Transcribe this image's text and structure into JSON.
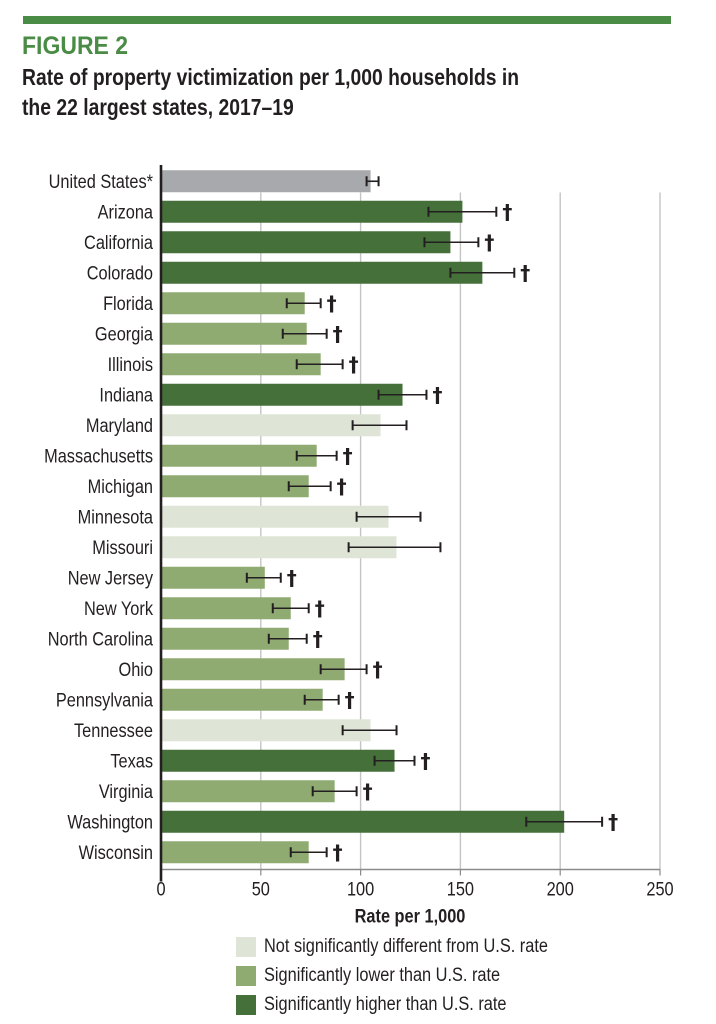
{
  "figure_label": "FIGURE 2",
  "title_line1": "Rate of property victimization per 1,000 households in",
  "title_line2": "the 22 largest states, 2017–19",
  "colors": {
    "header_green": "#4a8c46",
    "us": "#a7a9ac",
    "not_significant": "#dfe5d6",
    "lower": "#8fab72",
    "higher": "#46703a",
    "text": "#231f20"
  },
  "chart_data": {
    "type": "bar",
    "orientation": "horizontal",
    "title": "Rate of property victimization per 1,000 households in the 22 largest states, 2017–19",
    "xlabel": "Rate per 1,000",
    "ylabel": "",
    "xlim": [
      0,
      250
    ],
    "xticks": [
      "0",
      "50",
      "100",
      "150",
      "200",
      "250"
    ],
    "grid": true,
    "legend_position": "bottom",
    "significance_marker": "†",
    "categories": [
      "United States*",
      "Arizona",
      "California",
      "Colorado",
      "Florida",
      "Georgia",
      "Illinois",
      "Indiana",
      "Maryland",
      "Massachusetts",
      "Michigan",
      "Minnesota",
      "Missouri",
      "New Jersey",
      "New York",
      "North Carolina",
      "Ohio",
      "Pennsylvania",
      "Tennessee",
      "Texas",
      "Virginia",
      "Washington",
      "Wisconsin"
    ],
    "values": [
      105,
      151,
      145,
      161,
      72,
      73,
      80,
      121,
      110,
      78,
      74,
      114,
      118,
      52,
      65,
      64,
      92,
      81,
      105,
      117,
      87,
      202,
      74
    ],
    "ci_low": [
      103,
      134,
      132,
      145,
      63,
      61,
      68,
      109,
      96,
      68,
      64,
      98,
      94,
      43,
      56,
      54,
      80,
      72,
      91,
      107,
      76,
      183,
      65
    ],
    "ci_high": [
      109,
      168,
      159,
      177,
      80,
      83,
      91,
      133,
      123,
      88,
      85,
      130,
      140,
      60,
      74,
      73,
      103,
      89,
      118,
      127,
      98,
      221,
      83
    ],
    "group": [
      "us",
      "higher",
      "higher",
      "higher",
      "lower",
      "lower",
      "lower",
      "higher",
      "not_significant",
      "lower",
      "lower",
      "not_significant",
      "not_significant",
      "lower",
      "lower",
      "lower",
      "lower",
      "lower",
      "not_significant",
      "higher",
      "lower",
      "higher",
      "lower"
    ],
    "legend": [
      {
        "key": "not_significant",
        "label": "Not significantly different from U.S. rate"
      },
      {
        "key": "lower",
        "label": "Significantly lower than U.S. rate"
      },
      {
        "key": "higher",
        "label": "Significantly higher than U.S. rate"
      }
    ]
  }
}
